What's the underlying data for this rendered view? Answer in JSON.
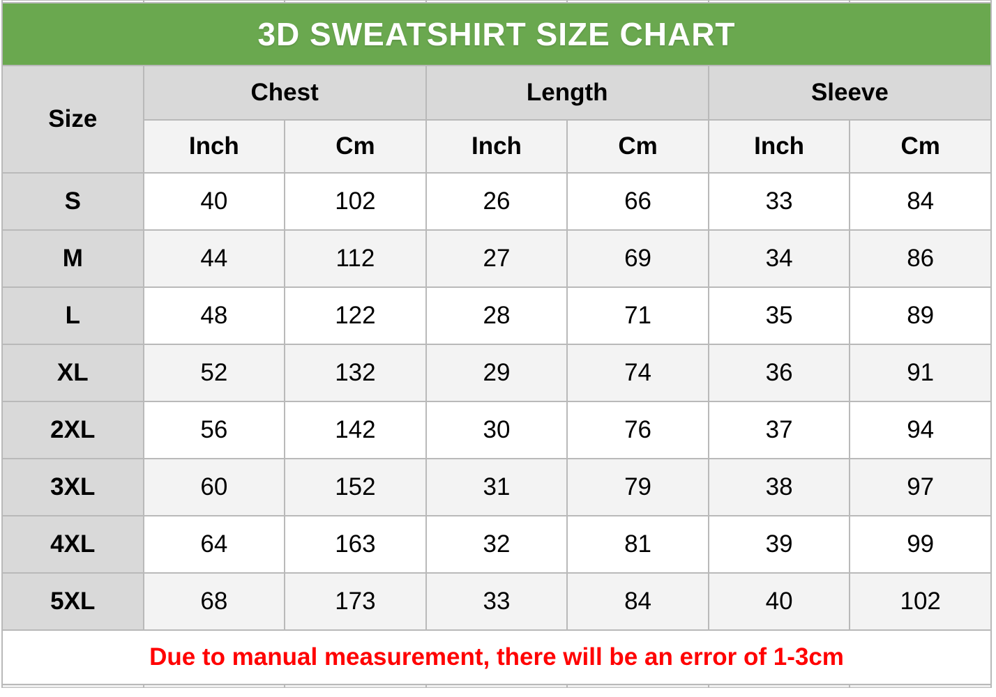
{
  "title": "3D SWEATSHIRT SIZE CHART",
  "note": "Due to manual measurement, there will be an error of 1-3cm",
  "headers": {
    "size": "Size",
    "groups": [
      "Chest",
      "Length",
      "Sleeve"
    ],
    "units": [
      "Inch",
      "Cm",
      "Inch",
      "Cm",
      "Inch",
      "Cm"
    ]
  },
  "rows": [
    {
      "size": "S",
      "chest_in": "40",
      "chest_cm": "102",
      "length_in": "26",
      "length_cm": "66",
      "sleeve_in": "33",
      "sleeve_cm": "84"
    },
    {
      "size": "M",
      "chest_in": "44",
      "chest_cm": "112",
      "length_in": "27",
      "length_cm": "69",
      "sleeve_in": "34",
      "sleeve_cm": "86"
    },
    {
      "size": "L",
      "chest_in": "48",
      "chest_cm": "122",
      "length_in": "28",
      "length_cm": "71",
      "sleeve_in": "35",
      "sleeve_cm": "89"
    },
    {
      "size": "XL",
      "chest_in": "52",
      "chest_cm": "132",
      "length_in": "29",
      "length_cm": "74",
      "sleeve_in": "36",
      "sleeve_cm": "91"
    },
    {
      "size": "2XL",
      "chest_in": "56",
      "chest_cm": "142",
      "length_in": "30",
      "length_cm": "76",
      "sleeve_in": "37",
      "sleeve_cm": "94"
    },
    {
      "size": "3XL",
      "chest_in": "60",
      "chest_cm": "152",
      "length_in": "31",
      "length_cm": "79",
      "sleeve_in": "38",
      "sleeve_cm": "97"
    },
    {
      "size": "4XL",
      "chest_in": "64",
      "chest_cm": "163",
      "length_in": "32",
      "length_cm": "81",
      "sleeve_in": "39",
      "sleeve_cm": "99"
    },
    {
      "size": "5XL",
      "chest_in": "68",
      "chest_cm": "173",
      "length_in": "33",
      "length_cm": "84",
      "sleeve_in": "40",
      "sleeve_cm": "102"
    }
  ],
  "colors": {
    "accent_green": "#6aa84f",
    "note_red": "#ff0000",
    "header_gray": "#d9d9d9",
    "stripe_gray": "#f3f3f3",
    "border_gray": "#b9b9b9"
  },
  "chart_data": {
    "type": "table",
    "title": "3D SWEATSHIRT SIZE CHART",
    "columns": [
      "Size",
      "Chest Inch",
      "Chest Cm",
      "Length Inch",
      "Length Cm",
      "Sleeve Inch",
      "Sleeve Cm"
    ],
    "rows": [
      [
        "S",
        40,
        102,
        26,
        66,
        33,
        84
      ],
      [
        "M",
        44,
        112,
        27,
        69,
        34,
        86
      ],
      [
        "L",
        48,
        122,
        28,
        71,
        35,
        89
      ],
      [
        "XL",
        52,
        132,
        29,
        74,
        36,
        91
      ],
      [
        "2XL",
        56,
        142,
        30,
        76,
        37,
        94
      ],
      [
        "3XL",
        60,
        152,
        31,
        79,
        38,
        97
      ],
      [
        "4XL",
        64,
        163,
        32,
        81,
        39,
        99
      ],
      [
        "5XL",
        68,
        173,
        33,
        84,
        40,
        102
      ]
    ],
    "footnote": "Due to manual measurement, there will be an error of 1-3cm"
  }
}
